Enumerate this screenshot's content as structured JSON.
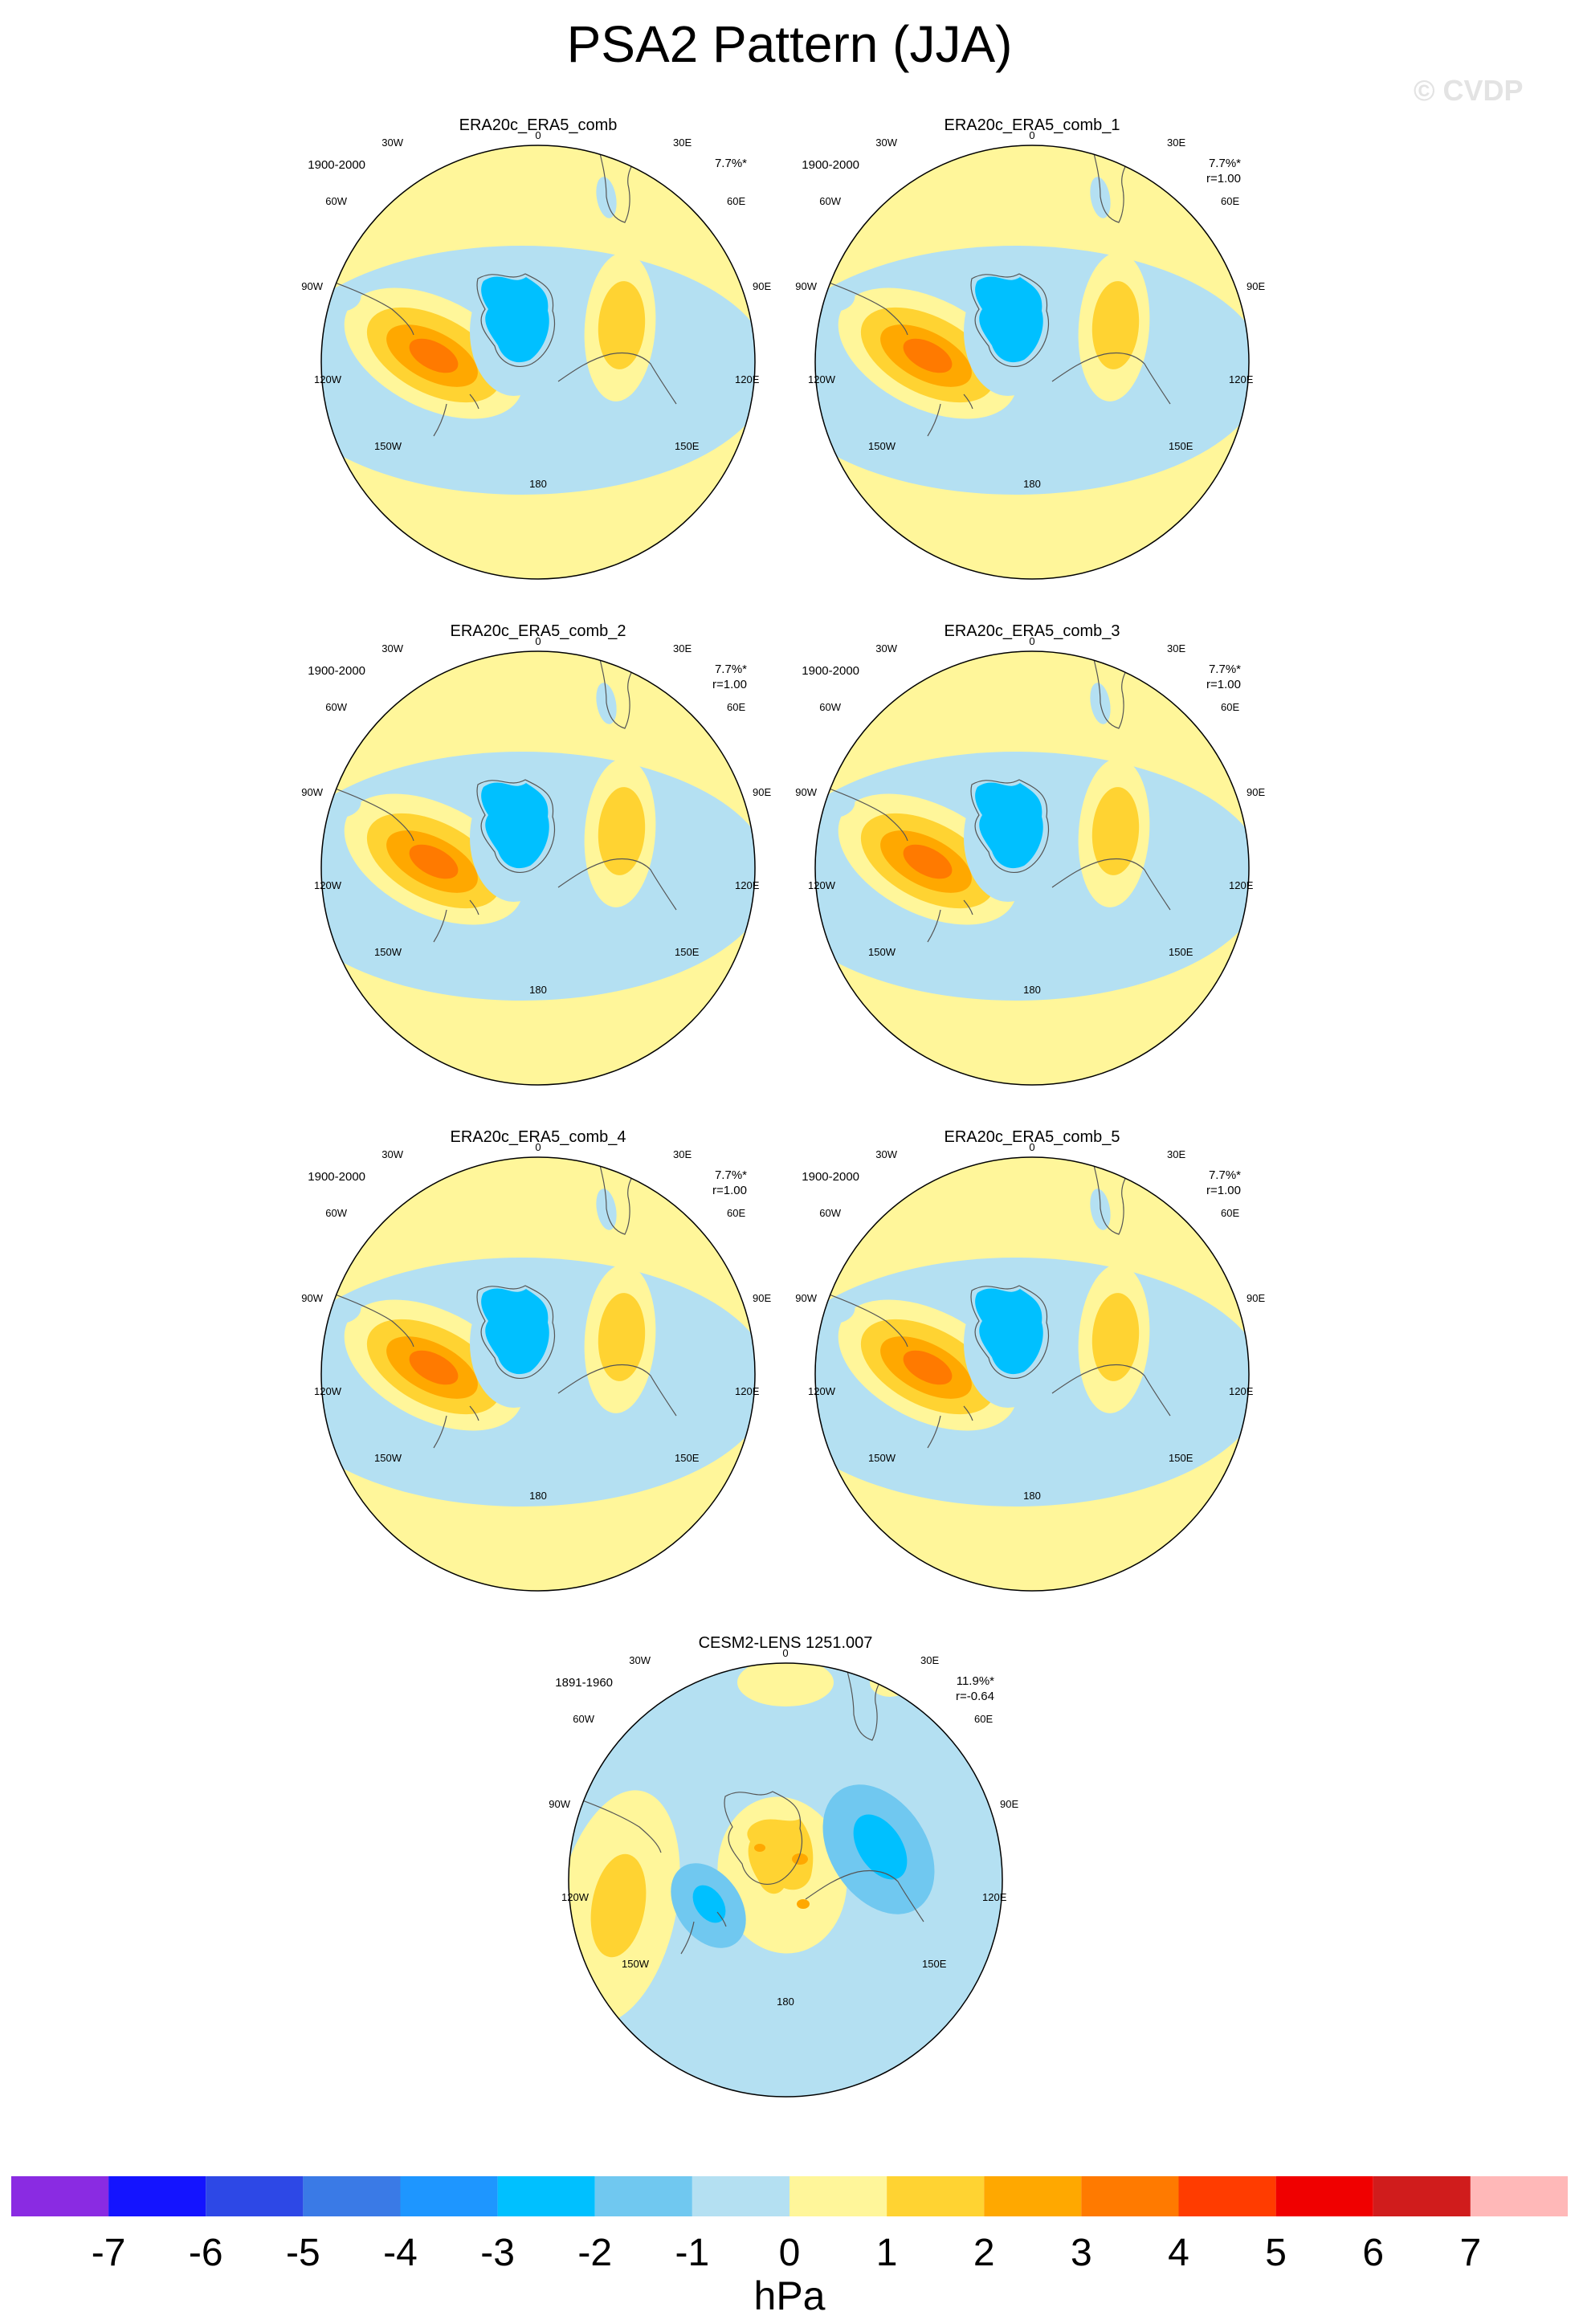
{
  "page": {
    "title": "PSA2 Pattern (JJA)",
    "watermark": "© CVDP"
  },
  "chart_data": {
    "type": "map-grid",
    "title": "PSA2 Pattern (JJA)",
    "projection": "south-polar-stereographic",
    "longitude_labels": [
      "0",
      "30E",
      "60E",
      "90E",
      "120E",
      "150E",
      "180",
      "150W",
      "120W",
      "90W",
      "60W",
      "30W"
    ],
    "units": "hPa",
    "colorbar": {
      "levels": [
        -7,
        -6,
        -5,
        -4,
        -3,
        -2,
        -1,
        0,
        1,
        2,
        3,
        4,
        5,
        6,
        7
      ],
      "labels": [
        "-7",
        "-6",
        "-5",
        "-4",
        "-3",
        "-2",
        "-1",
        "0",
        "1",
        "2",
        "3",
        "4",
        "5",
        "6",
        "7"
      ],
      "colors": [
        "#8a2be2",
        "#1414ff",
        "#2d48e6",
        "#3a7ae6",
        "#1e96ff",
        "#00c0ff",
        "#70c8f0",
        "#b4e0f2",
        "#fff69a",
        "#ffd332",
        "#ffa800",
        "#ff7a00",
        "#ff3c00",
        "#f00000",
        "#d01c1c",
        "#ffb8b8"
      ]
    },
    "panels": [
      {
        "title": "ERA20c_ERA5_comb",
        "years": "1900-2000",
        "pct": "7.7%*",
        "corr": "",
        "pattern": "obs"
      },
      {
        "title": "ERA20c_ERA5_comb_1",
        "years": "1900-2000",
        "pct": "7.7%*",
        "corr": "r=1.00",
        "pattern": "obs"
      },
      {
        "title": "ERA20c_ERA5_comb_2",
        "years": "1900-2000",
        "pct": "7.7%*",
        "corr": "r=1.00",
        "pattern": "obs"
      },
      {
        "title": "ERA20c_ERA5_comb_3",
        "years": "1900-2000",
        "pct": "7.7%*",
        "corr": "r=1.00",
        "pattern": "obs"
      },
      {
        "title": "ERA20c_ERA5_comb_4",
        "years": "1900-2000",
        "pct": "7.7%*",
        "corr": "r=1.00",
        "pattern": "obs"
      },
      {
        "title": "ERA20c_ERA5_comb_5",
        "years": "1900-2000",
        "pct": "7.7%*",
        "corr": "r=1.00",
        "pattern": "obs"
      },
      {
        "title": "CESM2-LENS 1251.007",
        "years": "1891-1960",
        "pct": "11.9%*",
        "corr": "r=-0.64",
        "pattern": "model"
      }
    ]
  }
}
